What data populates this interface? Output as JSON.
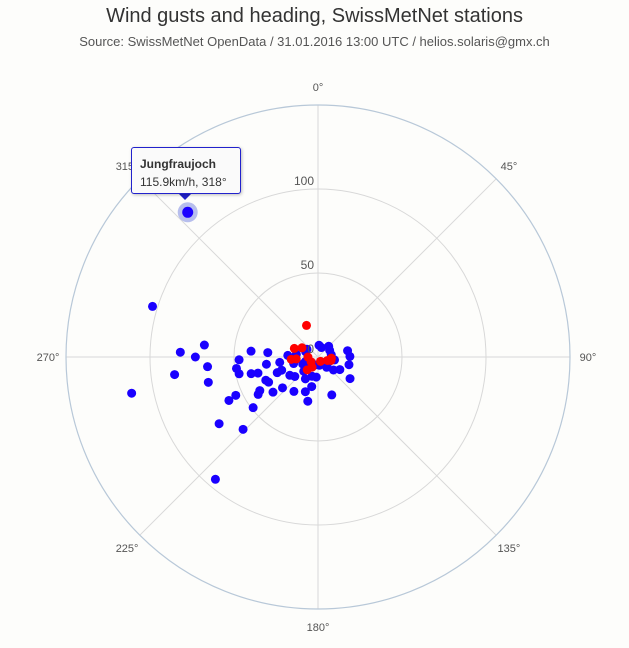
{
  "title": "Wind gusts and heading, SwissMetNet stations",
  "subtitle": "Source: SwissMetNet OpenData / 31.01.2016 13:00 UTC / helios.solaris@gmx.ch",
  "tooltip": {
    "name": "Jungfraujoch",
    "value_text": "115.9km/h, 318°"
  },
  "colors": {
    "series_main": "#1a00ff",
    "series_alt": "#ff0000",
    "grid": "#d8d8d8",
    "outer_ring": "#b8c8d8",
    "highlight_halo": "#9fa8e8"
  },
  "chart_data": {
    "type": "scatter",
    "projection": "polar",
    "title": "Wind gusts and heading, SwissMetNet stations",
    "subtitle": "Source: SwissMetNet OpenData / 31.01.2016 13:00 UTC / helios.solaris@gmx.ch",
    "angle_ticks": [
      "0°",
      "45°",
      "90°",
      "135°",
      "180°",
      "225°",
      "270°",
      "315°"
    ],
    "radial_ticks": [
      "0",
      "50",
      "100"
    ],
    "radial_range": [
      0,
      150
    ],
    "grid": true,
    "legend": "none",
    "highlighted_point": {
      "name": "Jungfraujoch",
      "heading": 318,
      "gust": 115.9
    },
    "series": [
      {
        "color": "#1a00ff",
        "points": [
          {
            "heading": 287,
            "gust": 103
          },
          {
            "heading": 259,
            "gust": 113
          },
          {
            "heading": 272,
            "gust": 82
          },
          {
            "heading": 276,
            "gust": 68
          },
          {
            "heading": 263,
            "gust": 86
          },
          {
            "heading": 270,
            "gust": 73
          },
          {
            "heading": 265,
            "gust": 66
          },
          {
            "heading": 257,
            "gust": 67
          },
          {
            "heading": 275,
            "gust": 40
          },
          {
            "heading": 275,
            "gust": 30
          },
          {
            "heading": 273,
            "gust": 18
          },
          {
            "heading": 268,
            "gust": 47
          },
          {
            "heading": 262,
            "gust": 49
          },
          {
            "heading": 258,
            "gust": 48
          },
          {
            "heading": 256,
            "gust": 41
          },
          {
            "heading": 255,
            "gust": 37
          },
          {
            "heading": 240,
            "gust": 40
          },
          {
            "heading": 249,
            "gust": 26
          },
          {
            "heading": 246,
            "gust": 34
          },
          {
            "heading": 262,
            "gust": 31
          },
          {
            "heading": 262,
            "gust": 23
          },
          {
            "heading": 236,
            "gust": 71
          },
          {
            "heading": 220,
            "gust": 95
          },
          {
            "heading": 226,
            "gust": 62
          },
          {
            "heading": 232,
            "gust": 49
          },
          {
            "heading": 244,
            "gust": 59
          },
          {
            "heading": 243,
            "gust": 33
          },
          {
            "heading": 238,
            "gust": 42
          },
          {
            "heading": 232,
            "gust": 34
          },
          {
            "heading": 229,
            "gust": 28
          },
          {
            "heading": 245,
            "gust": 54
          },
          {
            "heading": 250,
            "gust": 23
          },
          {
            "heading": 237,
            "gust": 20
          },
          {
            "heading": 230,
            "gust": 18
          },
          {
            "heading": 270,
            "gust": 14
          },
          {
            "heading": 277,
            "gust": 13
          },
          {
            "heading": 293,
            "gust": 8
          },
          {
            "heading": 305,
            "gust": 8
          },
          {
            "heading": 245,
            "gust": 10
          },
          {
            "heading": 250,
            "gust": 8
          },
          {
            "heading": 5,
            "gust": 7
          },
          {
            "heading": 20,
            "gust": 6
          },
          {
            "heading": 230,
            "gust": 8
          },
          {
            "heading": 192,
            "gust": 18
          },
          {
            "heading": 197,
            "gust": 12
          },
          {
            "heading": 185,
            "gust": 12
          },
          {
            "heading": 225,
            "gust": 12
          },
          {
            "heading": 210,
            "gust": 15
          },
          {
            "heading": 200,
            "gust": 22
          },
          {
            "heading": 193,
            "gust": 27
          },
          {
            "heading": 160,
            "gust": 24
          },
          {
            "heading": 124,
            "gust": 23
          },
          {
            "heading": 104,
            "gust": 19
          },
          {
            "heading": 120,
            "gust": 15
          },
          {
            "heading": 78,
            "gust": 18
          },
          {
            "heading": 89,
            "gust": 19
          },
          {
            "heading": 60,
            "gust": 8
          },
          {
            "heading": 80,
            "gust": 8
          },
          {
            "heading": 100,
            "gust": 10
          },
          {
            "heading": 115,
            "gust": 7
          },
          {
            "heading": 170,
            "gust": 5
          },
          {
            "heading": 200,
            "gust": 5
          },
          {
            "heading": 45,
            "gust": 9
          },
          {
            "heading": 140,
            "gust": 8
          },
          {
            "heading": 215,
            "gust": 25
          },
          {
            "heading": 255,
            "gust": 15
          },
          {
            "heading": 130,
            "gust": 12
          }
        ]
      },
      {
        "color": "#ff0000",
        "points": [
          {
            "heading": 340,
            "gust": 20
          },
          {
            "heading": 300,
            "gust": 11
          },
          {
            "heading": 290,
            "gust": 15
          },
          {
            "heading": 265,
            "gust": 16
          },
          {
            "heading": 265,
            "gust": 13
          },
          {
            "heading": 235,
            "gust": 5
          },
          {
            "heading": 220,
            "gust": 10
          },
          {
            "heading": 270,
            "gust": 6
          },
          {
            "heading": 105,
            "gust": 8
          },
          {
            "heading": 110,
            "gust": 6
          },
          {
            "heading": 95,
            "gust": 8
          },
          {
            "heading": 210,
            "gust": 7
          },
          {
            "heading": 150,
            "gust": 3
          }
        ]
      }
    ]
  }
}
